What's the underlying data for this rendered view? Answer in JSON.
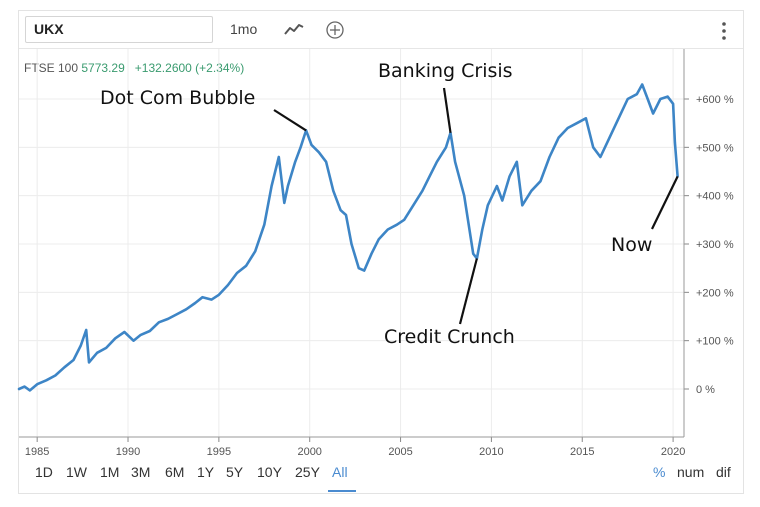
{
  "toolbar": {
    "symbol": "UKX",
    "interval": "1mo",
    "line_icon": "line-chart-icon",
    "add_icon": "plus-circle-icon",
    "menu_icon": "kebab-menu-icon"
  },
  "quote": {
    "name": "FTSE 100",
    "price": "5773.29",
    "change": "+132.2600 (+2.34%)"
  },
  "ranges": [
    "1D",
    "1W",
    "1M",
    "3M",
    "6M",
    "1Y",
    "5Y",
    "10Y",
    "25Y",
    "All"
  ],
  "active_range": "All",
  "modes": [
    "%",
    "num",
    "dif"
  ],
  "active_mode": "%",
  "annotations": {
    "dot_com": "Dot Com Bubble",
    "banking": "Banking Crisis",
    "credit": "Credit Crunch",
    "now": "Now"
  },
  "colors": {
    "line": "#3d85c6",
    "accent": "#4a8bd0",
    "positive": "#3a9b6f"
  },
  "chart_data": {
    "type": "line",
    "series": [
      {
        "x": [
          1984.0,
          1984.3,
          1984.6,
          1985.0,
          1985.5,
          1986.0,
          1986.5,
          1987.0,
          1987.4,
          1987.7,
          1987.85,
          1988.3,
          1988.8,
          1989.3,
          1989.8,
          1990.3,
          1990.7,
          1991.2,
          1991.7,
          1992.2,
          1992.7,
          1993.2,
          1993.7,
          1994.1,
          1994.6,
          1995.0,
          1995.5,
          1996.0,
          1996.5,
          1997.0,
          1997.5,
          1997.9,
          1998.3,
          1998.6,
          1998.8,
          1999.2,
          1999.5,
          1999.8,
          2000.1,
          2000.5,
          2000.9,
          2001.3,
          2001.7,
          2002.0,
          2002.3,
          2002.7,
          2003.0,
          2003.4,
          2003.8,
          2004.3,
          2004.8,
          2005.2,
          2005.7,
          2006.2,
          2006.6,
          2007.0,
          2007.5,
          2007.75,
          2008.0,
          2008.5,
          2009.0,
          2009.2,
          2009.5,
          2009.8,
          2010.3,
          2010.6,
          2011.0,
          2011.4,
          2011.7,
          2012.2,
          2012.7,
          2013.2,
          2013.7,
          2014.2,
          2014.7,
          2015.2,
          2015.6,
          2016.0,
          2016.5,
          2017.0,
          2017.5,
          2018.0,
          2018.3,
          2018.6,
          2018.9,
          2019.3,
          2019.7,
          2020.0,
          2020.1,
          2020.25
        ],
        "values": [
          0,
          5,
          -3,
          10,
          18,
          28,
          45,
          60,
          90,
          122,
          55,
          75,
          85,
          105,
          118,
          100,
          112,
          120,
          138,
          145,
          155,
          165,
          178,
          190,
          185,
          195,
          215,
          240,
          255,
          285,
          340,
          420,
          480,
          385,
          420,
          470,
          500,
          535,
          505,
          490,
          470,
          410,
          370,
          360,
          300,
          250,
          245,
          280,
          310,
          330,
          340,
          350,
          380,
          410,
          440,
          470,
          500,
          530,
          470,
          400,
          280,
          270,
          330,
          380,
          420,
          390,
          440,
          470,
          380,
          410,
          430,
          480,
          520,
          540,
          550,
          560,
          500,
          480,
          520,
          560,
          600,
          610,
          630,
          600,
          570,
          600,
          605,
          590,
          510,
          440
        ]
      }
    ],
    "y_ticks": [
      "+600 %",
      "+500 %",
      "+400 %",
      "+300 %",
      "+200 %",
      "+100 %",
      "0 %"
    ],
    "x_ticks": [
      "1985",
      "1990",
      "1995",
      "2000",
      "2005",
      "2010",
      "2015",
      "2020"
    ],
    "xlim": [
      1984,
      2020.6
    ],
    "ylim": [
      -100,
      650
    ],
    "grid": true
  }
}
